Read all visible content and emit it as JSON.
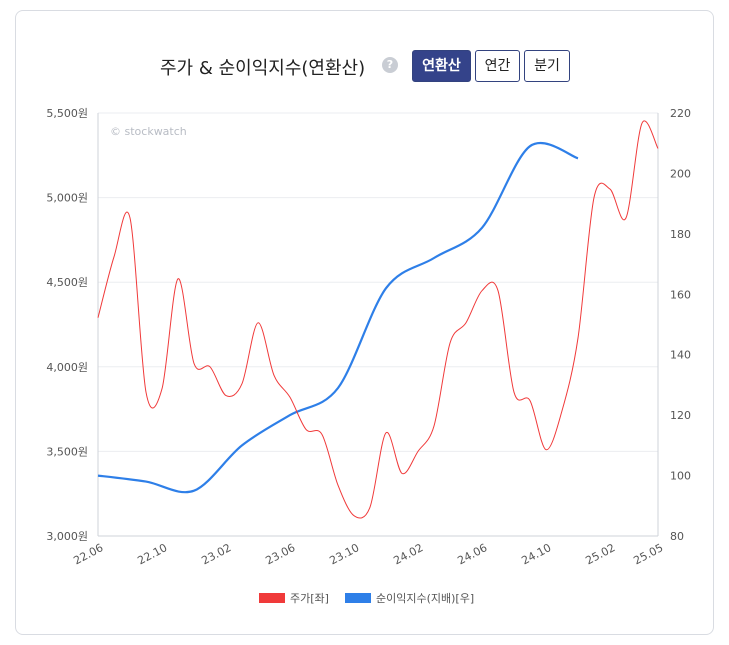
{
  "header": {
    "title": "주가 & 순이익지수(연환산)",
    "help": "?",
    "buttons": [
      {
        "label": "연환산",
        "active": true
      },
      {
        "label": "연간",
        "active": false
      },
      {
        "label": "분기",
        "active": false
      }
    ]
  },
  "watermark": "© stockwatch",
  "colors": {
    "price": "#f03a3a",
    "earnings": "#2e7fe8",
    "active_button": "#34438a"
  },
  "chart_data": {
    "type": "line",
    "x_ticks": [
      "22.06",
      "22.10",
      "23.02",
      "23.06",
      "23.10",
      "24.02",
      "24.06",
      "24.10",
      "25.02",
      "25.05"
    ],
    "y_left": {
      "ticks": [
        "3,000원",
        "3,500원",
        "4,000원",
        "4,500원",
        "5,000원",
        "5,500원"
      ],
      "range": [
        3000,
        5500
      ]
    },
    "y_right": {
      "ticks": [
        "80",
        "100",
        "120",
        "140",
        "160",
        "180",
        "200",
        "220"
      ],
      "range": [
        80,
        220
      ]
    },
    "legend": [
      "주가[좌]",
      "순이익지수(지배)[우]"
    ],
    "series": [
      {
        "name": "주가[좌]",
        "axis": "left",
        "points": [
          [
            "22.06",
            4290
          ],
          [
            "22.07",
            4650
          ],
          [
            "22.08",
            4880
          ],
          [
            "22.09",
            3850
          ],
          [
            "22.10",
            3870
          ],
          [
            "22.11",
            4520
          ],
          [
            "22.12",
            4020
          ],
          [
            "23.01",
            4000
          ],
          [
            "23.02",
            3830
          ],
          [
            "23.03",
            3900
          ],
          [
            "23.04",
            4260
          ],
          [
            "23.05",
            3950
          ],
          [
            "23.06",
            3820
          ],
          [
            "23.07",
            3630
          ],
          [
            "23.08",
            3600
          ],
          [
            "23.09",
            3300
          ],
          [
            "23.10",
            3120
          ],
          [
            "23.11",
            3170
          ],
          [
            "23.12",
            3610
          ],
          [
            "24.01",
            3370
          ],
          [
            "24.02",
            3500
          ],
          [
            "24.03",
            3650
          ],
          [
            "24.04",
            4140
          ],
          [
            "24.05",
            4260
          ],
          [
            "24.06",
            4450
          ],
          [
            "24.07",
            4450
          ],
          [
            "24.08",
            3850
          ],
          [
            "24.09",
            3800
          ],
          [
            "24.10",
            3510
          ],
          [
            "24.11",
            3740
          ],
          [
            "24.12",
            4170
          ],
          [
            "25.01",
            5000
          ],
          [
            "25.02",
            5050
          ],
          [
            "25.03",
            4880
          ],
          [
            "25.04",
            5440
          ],
          [
            "25.05",
            5290
          ]
        ]
      },
      {
        "name": "순이익지수(지배)[우]",
        "axis": "right",
        "points": [
          [
            "22.06",
            100
          ],
          [
            "22.09",
            98
          ],
          [
            "22.12",
            95
          ],
          [
            "23.03",
            110
          ],
          [
            "23.06",
            120
          ],
          [
            "23.09",
            129
          ],
          [
            "23.12",
            162
          ],
          [
            "24.03",
            172
          ],
          [
            "24.06",
            182
          ],
          [
            "24.09",
            209
          ],
          [
            "24.12",
            205
          ]
        ]
      }
    ]
  }
}
